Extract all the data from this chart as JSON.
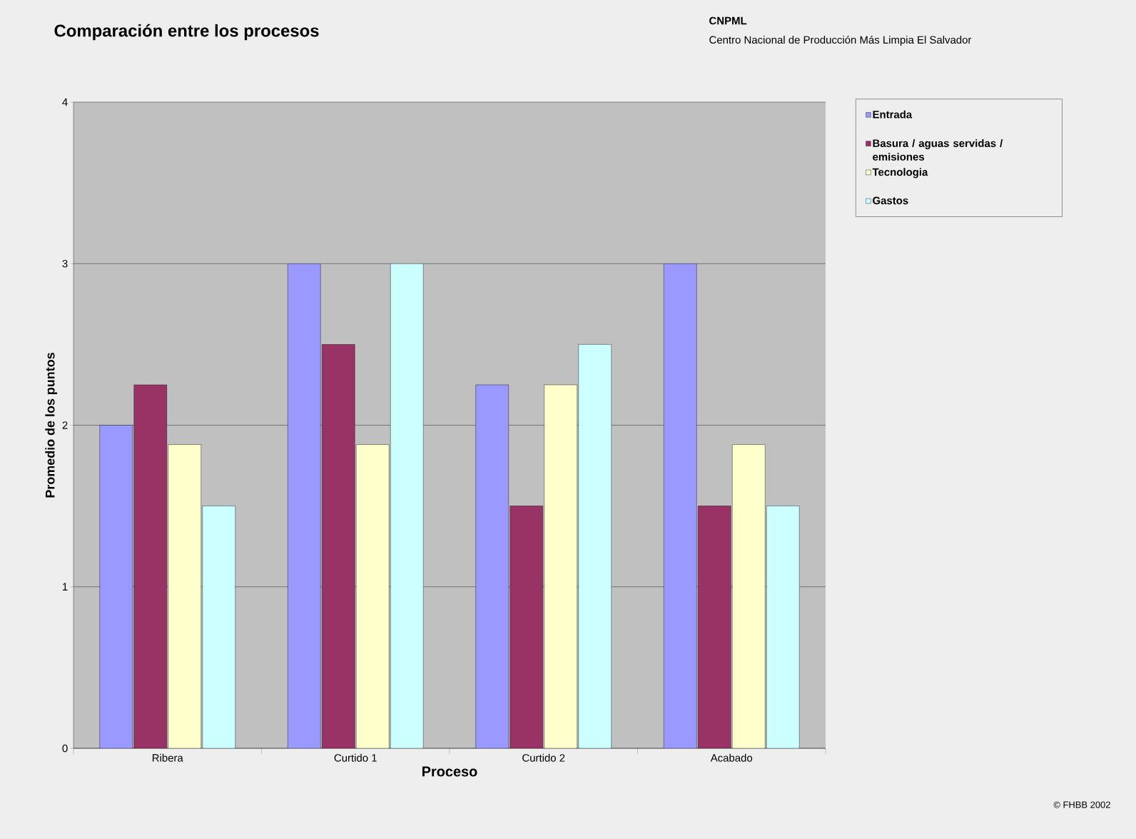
{
  "chart_data": {
    "type": "bar",
    "title": "Comparación entre los procesos",
    "xlabel": "Proceso",
    "ylabel": "Promedio de los puntos",
    "categories": [
      "Ribera",
      "Curtido 1",
      "Curtido 2",
      "Acabado"
    ],
    "series": [
      {
        "name": "Entrada",
        "color": "#9999ff",
        "values": [
          2,
          3,
          2.25,
          3
        ]
      },
      {
        "name": "Basura / aguas servidas / emisiones",
        "color": "#993366",
        "values": [
          2.25,
          2.5,
          1.5,
          1.5
        ]
      },
      {
        "name": "Tecnologia",
        "color": "#ffffcc",
        "values": [
          1.88,
          1.88,
          2.25,
          1.88
        ]
      },
      {
        "name": "Gastos",
        "color": "#ccffff",
        "values": [
          1.5,
          3,
          2.5,
          1.5
        ]
      }
    ],
    "ylim": [
      0,
      4
    ],
    "yticks": [
      0,
      1,
      2,
      3,
      4
    ],
    "grid": "y",
    "legend": "right",
    "annotations": [
      "CNPML",
      "Centro Nacional de Producción Más Limpia El Salvador",
      "© FHBB 2002"
    ]
  }
}
